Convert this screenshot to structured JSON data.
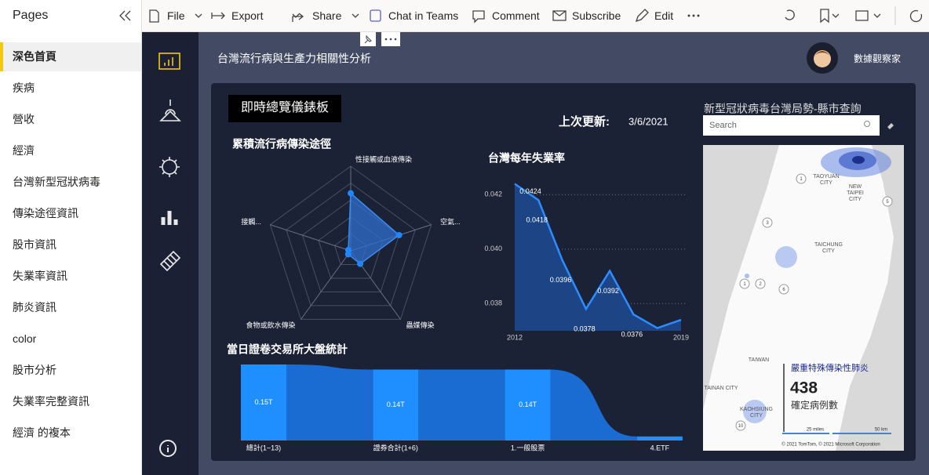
{
  "sidebar": {
    "title": "Pages",
    "items": [
      "深色首頁",
      "疾病",
      "營收",
      "經濟",
      "台灣新型冠狀病毒",
      "傳染途徑資訊",
      "股市資訊",
      "失業率資訊",
      "肺炎資訊",
      "color",
      "股市分析",
      "失業率完整資訊",
      "經濟 的複本"
    ],
    "active": 0
  },
  "toolbar": {
    "items": [
      "File",
      "Export",
      "Share",
      "Chat in Teams",
      "Comment",
      "Subscribe",
      "Edit"
    ]
  },
  "report": {
    "title": "台灣流行病與生產力相關性分析",
    "user": "數據觀察家"
  },
  "dashboard": {
    "title": "即時總覽儀錶板",
    "update_label": "上次更新:",
    "update_date": "3/6/2021"
  },
  "chart_data": [
    {
      "type": "radar",
      "title": "累積流行病傳染途徑",
      "categories": [
        "性接觸或血液傳染",
        "空氣...",
        "蟲媒傳染",
        "食物或飲水傳染",
        "接觸..."
      ],
      "values": [
        68,
        60,
        19,
        5,
        3
      ],
      "rlim": [
        0,
        100
      ],
      "rings": 5,
      "color": "#2d6fd0"
    },
    {
      "type": "area",
      "title": "台灣每年失業率",
      "categories": [
        "2012",
        null,
        null,
        null,
        null,
        null,
        null,
        "2019"
      ],
      "values": [
        0.0424,
        0.0418,
        0.0396,
        0.0378,
        0.0392,
        0.0376,
        0.0371,
        0.0374
      ],
      "value_labels": [
        "0.0424",
        "0.0418",
        "0.0396",
        "0.0378",
        "0.0392",
        "0.0376",
        null,
        null
      ],
      "ylim": [
        0.037,
        0.0425
      ],
      "yticks": [
        0.038,
        {
          "value": 0.04,
          "label": "0.040"
        },
        0.042
      ],
      "grid": true,
      "color": "#2d8cff"
    },
    {
      "type": "ribbon",
      "title": "當日證卷交易所大盤統計",
      "categories": [
        "總計(1~13)",
        "證券合計(1+6)",
        "1.一般股票",
        "4.ETF"
      ],
      "values": [
        0.15,
        0.14,
        0.14,
        0.008
      ],
      "value_labels": [
        "0.15T",
        "0.14T",
        "0.14T",
        null
      ],
      "ylim": [
        0,
        0.15
      ],
      "color": "#1f8fff",
      "ribbon_color": "#1a6cd3"
    }
  ],
  "map": {
    "title": "新型冠狀病毒台灣局勢-縣市查詢",
    "search_placeholder": "Search",
    "places": [
      [
        "TAOYUAN",
        "CITY"
      ],
      [
        "NEW",
        "TAIPEI",
        "CITY"
      ],
      [
        "TAICHUNG",
        "CITY"
      ],
      [
        "TAIWAN"
      ],
      [
        "TAINAN CITY"
      ],
      [
        "KAOHSIUNG",
        "CITY"
      ]
    ],
    "road_markers": [
      "1",
      "5",
      "3",
      "1",
      "2",
      "6",
      "10"
    ],
    "scale": [
      "25 miles",
      "50 km"
    ],
    "copyright": "© 2021 TomTom, © 2021 Microsoft Corporation"
  },
  "card": {
    "title": "嚴重特殊傳染性肺炎",
    "value": 438,
    "label": "確定病例數"
  }
}
